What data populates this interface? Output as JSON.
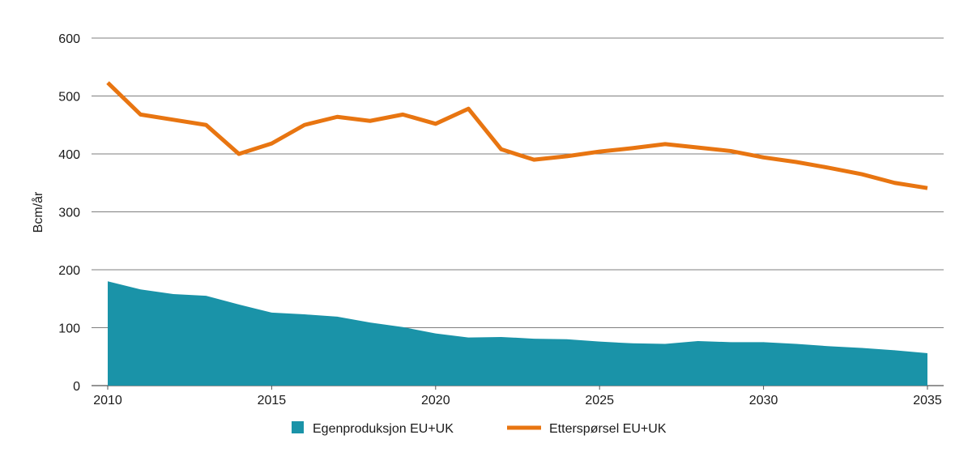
{
  "chart_data": {
    "type": "area+line",
    "ylabel": "Bcm/år",
    "xlabel": "",
    "ylim": [
      0,
      600
    ],
    "xlim": [
      2010,
      2035
    ],
    "yticks": [
      "0",
      "100",
      "200",
      "300",
      "400",
      "500",
      "600"
    ],
    "xticks": [
      "2010",
      "2015",
      "2020",
      "2025",
      "2030",
      "2035"
    ],
    "grid": "horizontal",
    "legend_position": "bottom",
    "x": [
      2010,
      2011,
      2012,
      2013,
      2014,
      2015,
      2016,
      2017,
      2018,
      2019,
      2020,
      2021,
      2022,
      2023,
      2024,
      2025,
      2026,
      2027,
      2028,
      2029,
      2030,
      2031,
      2032,
      2033,
      2034,
      2035
    ],
    "series": [
      {
        "name": "Egenproduksjon EU+UK",
        "type": "area",
        "color": "#1a93a8",
        "values": [
          180,
          166,
          158,
          155,
          140,
          126,
          123,
          119,
          109,
          101,
          90,
          83,
          84,
          81,
          80,
          76,
          73,
          72,
          77,
          75,
          75,
          72,
          68,
          65,
          61,
          56
        ]
      },
      {
        "name": "Etterspørsel EU+UK",
        "type": "line",
        "color": "#e87511",
        "values": [
          523,
          468,
          459,
          450,
          400,
          418,
          450,
          464,
          457,
          468,
          452,
          478,
          408,
          390,
          396,
          404,
          410,
          417,
          411,
          405,
          394,
          386,
          376,
          365,
          350,
          341
        ]
      }
    ]
  }
}
